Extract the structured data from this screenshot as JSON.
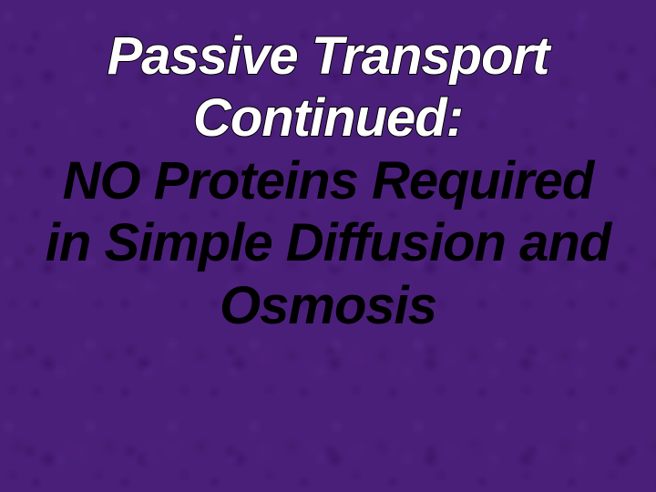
{
  "slide": {
    "title_line1": "Passive Transport",
    "title_line2": "Continued:",
    "body_line1": "NO Proteins Required",
    "body_line2": "in Simple Diffusion and",
    "body_line3": "Osmosis",
    "title_color": "#ffffff",
    "body_color": "#000000",
    "background_base": "#4a1f7a",
    "font_family": "Verdana",
    "font_style": "italic",
    "font_weight": "900",
    "title_fontsize": 58,
    "body_fontsize": 58,
    "text_stroke_color": "#000000",
    "text_stroke_width": 2
  }
}
